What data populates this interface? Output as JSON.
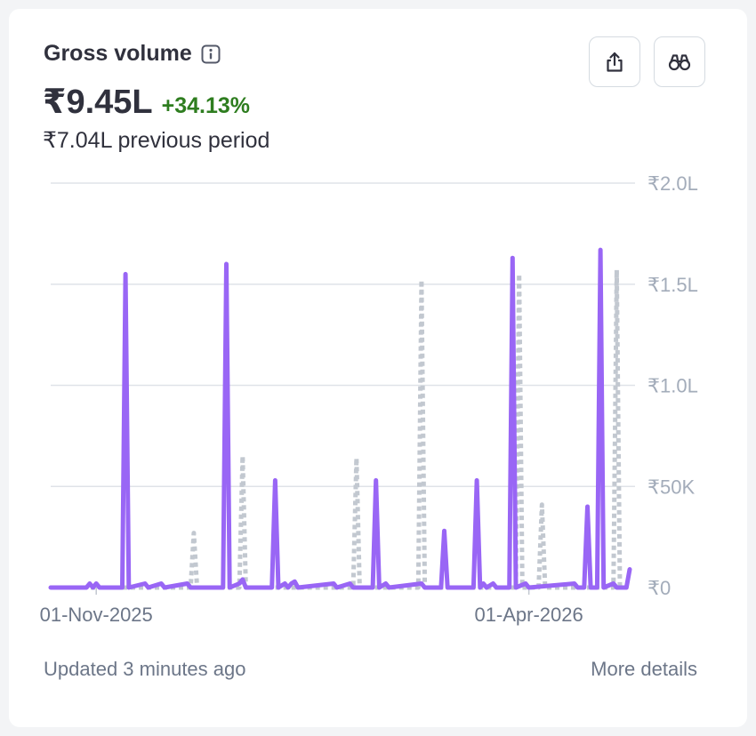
{
  "header": {
    "title": "Gross volume",
    "amount": "₹9.45L",
    "change": "+34.13%",
    "previous": "₹7.04L previous period",
    "info_icon": "info-icon",
    "export_icon": "share-icon",
    "explore_icon": "binoculars-icon"
  },
  "footer": {
    "updated": "Updated 3 minutes ago",
    "more": "More details"
  },
  "colors": {
    "current": "#9966f5",
    "previous": "#c2c8d0",
    "grid": "#dfe3e8",
    "positive": "#2e7d1f"
  },
  "chart_data": {
    "type": "line",
    "y_tick_labels": [
      "₹0",
      "₹50K",
      "₹1.0L",
      "₹1.5L",
      "₹2.0L"
    ],
    "y_ticks": [
      0,
      50000,
      100000,
      150000,
      200000
    ],
    "ylim": [
      0,
      200000
    ],
    "x_tick_labels": [
      "01-Nov-2025",
      "01-Apr-2026"
    ],
    "x_tick_index": [
      14,
      147
    ],
    "n_points": 179,
    "grid": true,
    "legend": "none",
    "series": [
      {
        "role": "current",
        "style": "solid",
        "points": [
          [
            0,
            0
          ],
          [
            11,
            0
          ],
          [
            12,
            2000
          ],
          [
            13,
            0
          ],
          [
            14,
            2000
          ],
          [
            15,
            0
          ],
          [
            22,
            0
          ],
          [
            23,
            155000
          ],
          [
            24,
            0
          ],
          [
            29,
            2000
          ],
          [
            30,
            0
          ],
          [
            34,
            2000
          ],
          [
            35,
            0
          ],
          [
            42,
            2000
          ],
          [
            43,
            0
          ],
          [
            53,
            0
          ],
          [
            54,
            160000
          ],
          [
            55,
            0
          ],
          [
            58,
            2000
          ],
          [
            59,
            4000
          ],
          [
            60,
            0
          ],
          [
            68,
            0
          ],
          [
            69,
            53000
          ],
          [
            70,
            0
          ],
          [
            72,
            2000
          ],
          [
            73,
            0
          ],
          [
            74,
            2000
          ],
          [
            75,
            3000
          ],
          [
            76,
            0
          ],
          [
            87,
            2000
          ],
          [
            88,
            0
          ],
          [
            92,
            2000
          ],
          [
            93,
            0
          ],
          [
            99,
            0
          ],
          [
            100,
            53000
          ],
          [
            101,
            0
          ],
          [
            103,
            2000
          ],
          [
            104,
            0
          ],
          [
            114,
            2000
          ],
          [
            115,
            0
          ],
          [
            120,
            0
          ],
          [
            121,
            28000
          ],
          [
            122,
            0
          ],
          [
            130,
            0
          ],
          [
            131,
            53000
          ],
          [
            132,
            0
          ],
          [
            133,
            2000
          ],
          [
            134,
            0
          ],
          [
            136,
            2000
          ],
          [
            137,
            0
          ],
          [
            141,
            0
          ],
          [
            142,
            163000
          ],
          [
            143,
            0
          ],
          [
            146,
            2000
          ],
          [
            147,
            0
          ],
          [
            161,
            2000
          ],
          [
            162,
            0
          ],
          [
            164,
            0
          ],
          [
            165,
            40000
          ],
          [
            166,
            0
          ],
          [
            168,
            0
          ],
          [
            169,
            167000
          ],
          [
            170,
            0
          ],
          [
            173,
            2000
          ],
          [
            174,
            0
          ],
          [
            177,
            0
          ],
          [
            178,
            9000
          ]
        ]
      },
      {
        "role": "previous",
        "style": "dashed",
        "points": [
          [
            0,
            0
          ],
          [
            43,
            0
          ],
          [
            44,
            27000
          ],
          [
            45,
            0
          ],
          [
            58,
            0
          ],
          [
            59,
            65000
          ],
          [
            60,
            0
          ],
          [
            93,
            0
          ],
          [
            94,
            64000
          ],
          [
            95,
            0
          ],
          [
            113,
            0
          ],
          [
            114,
            152000
          ],
          [
            115,
            0
          ],
          [
            143,
            0
          ],
          [
            144,
            155000
          ],
          [
            145,
            0
          ],
          [
            150,
            0
          ],
          [
            151,
            41000
          ],
          [
            152,
            0
          ],
          [
            173,
            0
          ],
          [
            174,
            157000
          ],
          [
            175,
            0
          ],
          [
            178,
            0
          ]
        ]
      }
    ]
  }
}
